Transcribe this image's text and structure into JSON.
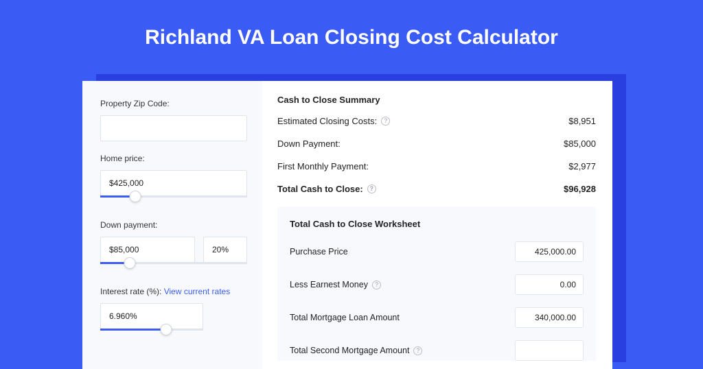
{
  "colors": {
    "page_bg": "#3b5bf5",
    "card_shadow": "#2a3fe0",
    "card_bg": "#ffffff",
    "left_pane_bg": "#f7f9fc",
    "input_border": "#dfe3ea",
    "slider_track": "#e0e4ec",
    "slider_fill": "#3b5bf5",
    "link": "#3b5bf5",
    "worksheet_bg": "#f7f9fc",
    "ws_val_border": "#e3e7ee",
    "help_border": "#b8bec9",
    "help_text": "#9aa1ad"
  },
  "page": {
    "title": "Richland VA Loan Closing Cost Calculator",
    "title_fontsize": 30
  },
  "left": {
    "zip": {
      "label": "Property Zip Code:",
      "value": ""
    },
    "home_price": {
      "label": "Home price:",
      "value": "$425,000",
      "slider": {
        "fill_pct": 24,
        "thumb_pct": 24
      }
    },
    "down_payment": {
      "label": "Down payment:",
      "amount": "$85,000",
      "pct": "20%",
      "slider": {
        "fill_pct": 20,
        "thumb_pct": 20
      }
    },
    "interest": {
      "label": "Interest rate (%):",
      "link_text": "View current rates",
      "value": "6.960%",
      "slider": {
        "fill_pct": 64,
        "thumb_pct": 64
      }
    }
  },
  "summary": {
    "title": "Cash to Close Summary",
    "rows": [
      {
        "label": "Estimated Closing Costs:",
        "help": true,
        "value": "$8,951",
        "total": false
      },
      {
        "label": "Down Payment:",
        "help": false,
        "value": "$85,000",
        "total": false
      },
      {
        "label": "First Monthly Payment:",
        "help": false,
        "value": "$2,977",
        "total": false
      },
      {
        "label": "Total Cash to Close:",
        "help": true,
        "value": "$96,928",
        "total": true
      }
    ]
  },
  "worksheet": {
    "title": "Total Cash to Close Worksheet",
    "rows": [
      {
        "label": "Purchase Price",
        "help": false,
        "value": "425,000.00"
      },
      {
        "label": "Less Earnest Money",
        "help": true,
        "value": "0.00"
      },
      {
        "label": "Total Mortgage Loan Amount",
        "help": false,
        "value": "340,000.00"
      },
      {
        "label": "Total Second Mortgage Amount",
        "help": true,
        "value": ""
      }
    ]
  }
}
